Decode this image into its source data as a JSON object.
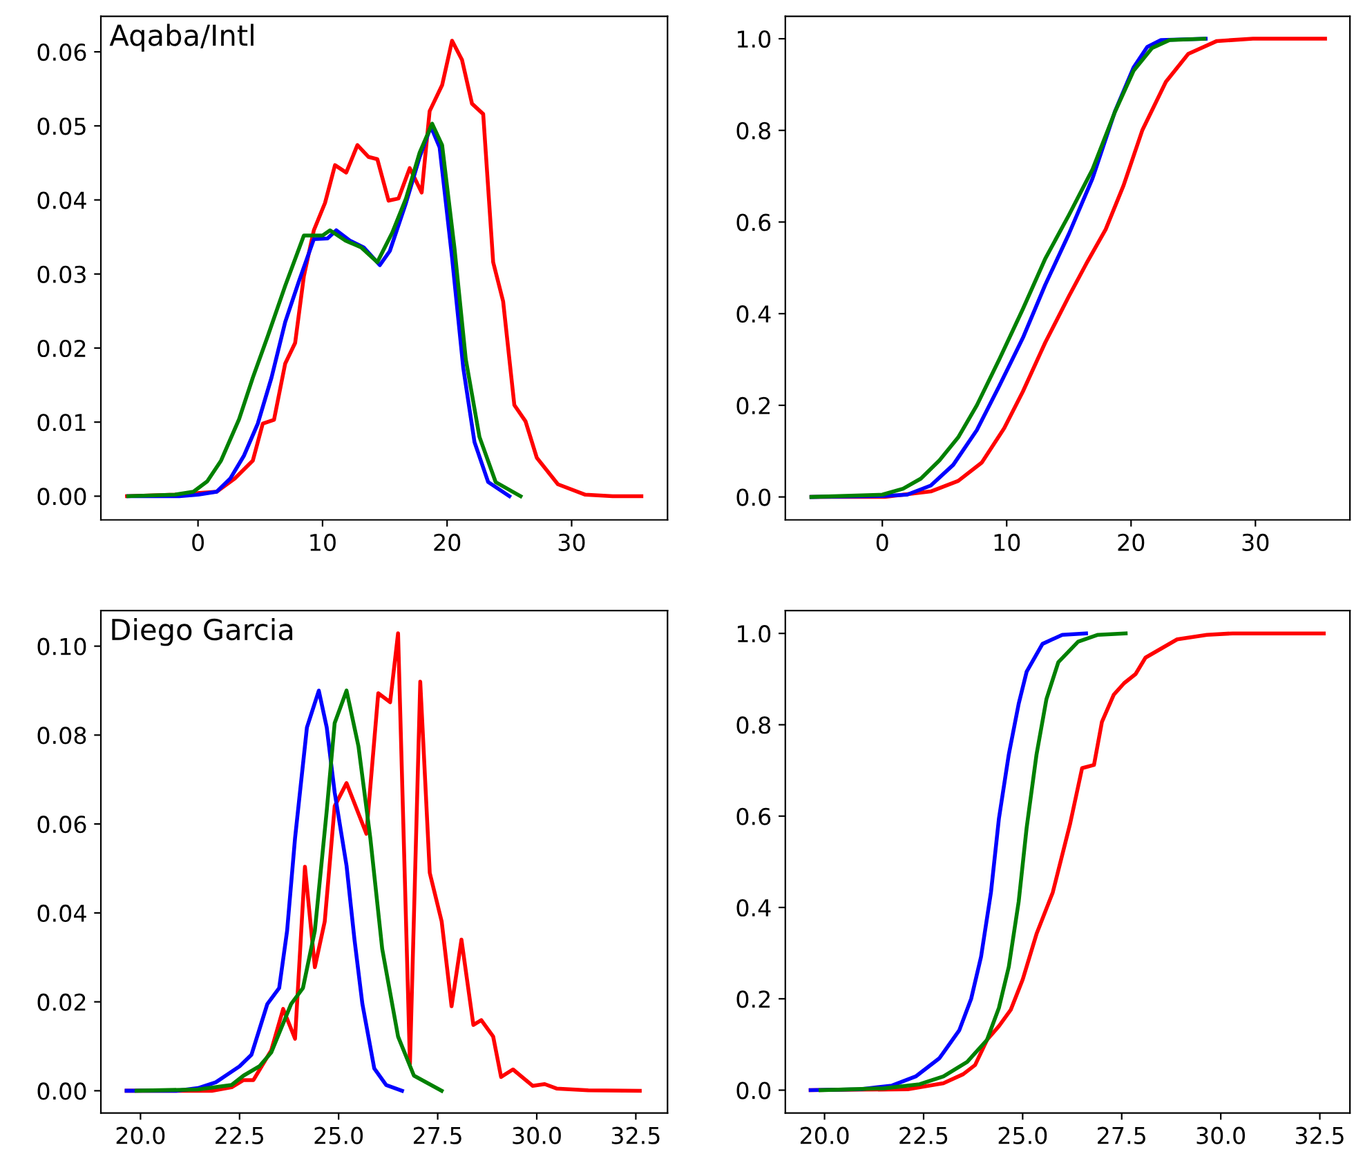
{
  "chart_data": [
    {
      "type": "line",
      "title": "Aqaba/Intl",
      "xlim": [
        -7.8,
        37.7
      ],
      "ylim": [
        -0.0032,
        0.0648
      ],
      "xticks": [
        0,
        10,
        20,
        30
      ],
      "yticks": [
        {
          "value": 0,
          "label": "0.00"
        },
        {
          "value": 0.01,
          "label": "0.01"
        },
        {
          "value": 0.02,
          "label": "0.02"
        },
        {
          "value": 0.03,
          "label": "0.03"
        },
        {
          "value": 0.04,
          "label": "0.04"
        },
        {
          "value": 0.05,
          "label": "0.05"
        },
        {
          "value": 0.06,
          "label": "0.06"
        }
      ],
      "grid": false,
      "marker": "none",
      "line_style": "solid",
      "series": [
        {
          "color": "#ff0000",
          "x": [
            -5.7,
            -1.85,
            1.5,
            2.96,
            4.4,
            5.2,
            6.1,
            7.0,
            7.8,
            8.5,
            9.3,
            10.2,
            11.0,
            11.9,
            12.8,
            13.7,
            14.4,
            15.3,
            16.1,
            17.0,
            17.96,
            18.6,
            19.6,
            20.4,
            21.2,
            22.0,
            22.9,
            23.7,
            24.5,
            25.4,
            26.3,
            27.2,
            28.9,
            31.1,
            33.3,
            35.6
          ],
          "values": [
            0,
            0.0002,
            0.0006,
            0.0024,
            0.0048,
            0.0098,
            0.0103,
            0.0179,
            0.0207,
            0.0297,
            0.0359,
            0.0396,
            0.0447,
            0.0437,
            0.0474,
            0.0458,
            0.0455,
            0.0399,
            0.0402,
            0.0443,
            0.041,
            0.052,
            0.0555,
            0.0615,
            0.0589,
            0.053,
            0.0516,
            0.0316,
            0.0263,
            0.0123,
            0.0101,
            0.0052,
            0.0016,
            0.0002,
            0,
            0
          ]
        },
        {
          "color": "#0000ff",
          "x": [
            -5.6,
            -1.5,
            0,
            1.5,
            2.6,
            3.7,
            4.8,
            5.9,
            7.0,
            8.1,
            9.3,
            10.4,
            11.1,
            12.2,
            13.3,
            14.6,
            15.4,
            16.7,
            17.8,
            18.7,
            19.4,
            20.4,
            21.3,
            22.2,
            23.3,
            25.0
          ],
          "values": [
            0,
            0,
            0.0002,
            0.0006,
            0.0024,
            0.0055,
            0.0098,
            0.016,
            0.0235,
            0.029,
            0.0347,
            0.0348,
            0.0359,
            0.0345,
            0.0336,
            0.0312,
            0.0331,
            0.0396,
            0.0458,
            0.0499,
            0.0471,
            0.0322,
            0.0173,
            0.0073,
            0.0019,
            0
          ]
        },
        {
          "color": "#008000",
          "x": [
            -5.6,
            -1.85,
            -0.37,
            0.74,
            1.85,
            3.3,
            4.4,
            5.6,
            7.0,
            8.5,
            10.0,
            10.6,
            11.85,
            13.1,
            14.4,
            15.6,
            16.7,
            17.8,
            18.8,
            19.6,
            20.6,
            21.5,
            22.6,
            23.9,
            25.9
          ],
          "values": [
            0,
            0.0002,
            0.0006,
            0.002,
            0.0048,
            0.0104,
            0.016,
            0.0216,
            0.0284,
            0.0352,
            0.0352,
            0.0359,
            0.0345,
            0.0336,
            0.0316,
            0.0356,
            0.0402,
            0.0464,
            0.0503,
            0.0474,
            0.0334,
            0.0185,
            0.008,
            0.0019,
            0
          ]
        }
      ]
    },
    {
      "type": "line",
      "xlim": [
        -7.8,
        37.6
      ],
      "ylim": [
        -0.05,
        1.049
      ],
      "xticks": [
        0,
        10,
        20,
        30
      ],
      "yticks": [
        {
          "value": 0,
          "label": "0.0"
        },
        {
          "value": 0.2,
          "label": "0.2"
        },
        {
          "value": 0.4,
          "label": "0.4"
        },
        {
          "value": 0.6,
          "label": "0.6"
        },
        {
          "value": 0.8,
          "label": "0.8"
        },
        {
          "value": 1,
          "label": "1.0"
        }
      ],
      "grid": false,
      "marker": "none",
      "line_style": "solid",
      "series": [
        {
          "color": "#ff0000",
          "x": [
            -5.7,
            0.2,
            3.9,
            6.1,
            8.0,
            9.8,
            11.3,
            13.1,
            15.0,
            16.5,
            17.96,
            19.4,
            20.9,
            22.8,
            24.6,
            26.9,
            29.8,
            35.6
          ],
          "values": [
            0,
            0,
            0.012,
            0.035,
            0.075,
            0.15,
            0.23,
            0.337,
            0.438,
            0.514,
            0.584,
            0.68,
            0.8,
            0.906,
            0.967,
            0.995,
            1.0,
            1.0
          ]
        },
        {
          "color": "#0000ff",
          "x": [
            -5.7,
            0,
            2.0,
            3.9,
            5.7,
            7.6,
            9.4,
            11.3,
            13.1,
            15.0,
            16.9,
            18.7,
            20.2,
            21.3,
            22.4,
            26.0
          ],
          "values": [
            0,
            0.002,
            0.005,
            0.025,
            0.07,
            0.146,
            0.242,
            0.347,
            0.463,
            0.574,
            0.695,
            0.841,
            0.937,
            0.982,
            0.997,
            1.0
          ]
        },
        {
          "color": "#008000",
          "x": [
            -5.7,
            0,
            1.67,
            3.1,
            4.6,
            6.1,
            7.6,
            9.4,
            11.3,
            13.1,
            15.0,
            16.9,
            18.7,
            20.2,
            21.7,
            23.1,
            25.9
          ],
          "values": [
            0,
            0.005,
            0.018,
            0.04,
            0.08,
            0.13,
            0.2,
            0.3,
            0.41,
            0.52,
            0.615,
            0.715,
            0.84,
            0.93,
            0.98,
            0.997,
            1.0
          ]
        }
      ]
    },
    {
      "type": "line",
      "title": "Diego Garcia",
      "xlim": [
        19.0,
        33.3
      ],
      "ylim": [
        -0.005,
        0.108
      ],
      "xticks": [
        {
          "value": 20,
          "label": "20.0"
        },
        {
          "value": 22.5,
          "label": "22.5"
        },
        {
          "value": 25,
          "label": "25.0"
        },
        {
          "value": 27.5,
          "label": "27.5"
        },
        {
          "value": 30,
          "label": "30.0"
        },
        {
          "value": 32.5,
          "label": "32.5"
        }
      ],
      "yticks": [
        {
          "value": 0,
          "label": "0.00"
        },
        {
          "value": 0.02,
          "label": "0.02"
        },
        {
          "value": 0.04,
          "label": "0.04"
        },
        {
          "value": 0.06,
          "label": "0.06"
        },
        {
          "value": 0.08,
          "label": "0.08"
        },
        {
          "value": 0.1,
          "label": "0.10"
        }
      ],
      "grid": false,
      "marker": "none",
      "line_style": "solid",
      "series": [
        {
          "color": "#ff0000",
          "x": [
            19.65,
            21.8,
            22.3,
            22.6,
            22.85,
            23.3,
            23.6,
            23.9,
            24.15,
            24.4,
            24.65,
            24.9,
            25.2,
            25.7,
            26.0,
            26.3,
            26.5,
            26.8,
            27.06,
            27.3,
            27.6,
            27.85,
            28.1,
            28.4,
            28.6,
            28.9,
            29.1,
            29.4,
            29.9,
            30.2,
            30.5,
            31.3,
            32.6
          ],
          "values": [
            0,
            0,
            0.0008,
            0.0024,
            0.0024,
            0.0091,
            0.0184,
            0.0117,
            0.0504,
            0.0278,
            0.0381,
            0.064,
            0.0692,
            0.0578,
            0.0894,
            0.0874,
            0.1029,
            0.006,
            0.092,
            0.049,
            0.0381,
            0.019,
            0.034,
            0.0148,
            0.0159,
            0.0122,
            0.0031,
            0.0048,
            0.0011,
            0.0015,
            0.0005,
            0.0001,
            0
          ]
        },
        {
          "color": "#0000ff",
          "x": [
            19.65,
            20.9,
            21.45,
            21.9,
            22.15,
            22.5,
            22.8,
            23.0,
            23.2,
            23.5,
            23.7,
            23.9,
            24.2,
            24.5,
            24.7,
            24.9,
            25.2,
            25.4,
            25.6,
            25.9,
            26.2,
            26.6
          ],
          "values": [
            0,
            0,
            0.0006,
            0.0019,
            0.0034,
            0.0055,
            0.0081,
            0.0138,
            0.0195,
            0.0231,
            0.036,
            0.0568,
            0.0817,
            0.09,
            0.0817,
            0.0671,
            0.0506,
            0.034,
            0.0195,
            0.005,
            0.0013,
            0
          ]
        },
        {
          "color": "#008000",
          "x": [
            19.9,
            21.45,
            22.3,
            22.6,
            23.0,
            23.3,
            23.8,
            24.1,
            24.4,
            24.7,
            24.9,
            25.2,
            25.5,
            25.8,
            26.1,
            26.5,
            26.9,
            27.6
          ],
          "values": [
            0,
            0.0003,
            0.0013,
            0.0034,
            0.0055,
            0.0086,
            0.0195,
            0.0231,
            0.036,
            0.063,
            0.0827,
            0.09,
            0.0775,
            0.0568,
            0.0319,
            0.0122,
            0.0034,
            0
          ]
        }
      ]
    },
    {
      "type": "line",
      "xlim": [
        19.01,
        33.26
      ],
      "ylim": [
        -0.05,
        1.05
      ],
      "xticks": [
        {
          "value": 20,
          "label": "20.0"
        },
        {
          "value": 22.5,
          "label": "22.5"
        },
        {
          "value": 25,
          "label": "25.0"
        },
        {
          "value": 27.5,
          "label": "27.5"
        },
        {
          "value": 30,
          "label": "30.0"
        },
        {
          "value": 32.5,
          "label": "32.5"
        }
      ],
      "yticks": [
        {
          "value": 0,
          "label": "0.0"
        },
        {
          "value": 0.2,
          "label": "0.2"
        },
        {
          "value": 0.4,
          "label": "0.4"
        },
        {
          "value": 0.6,
          "label": "0.6"
        },
        {
          "value": 0.8,
          "label": "0.8"
        },
        {
          "value": 1,
          "label": "1.0"
        }
      ],
      "grid": false,
      "marker": "none",
      "line_style": "solid",
      "series": [
        {
          "color": "#ff0000",
          "x": [
            19.65,
            22.1,
            23.0,
            23.5,
            23.8,
            24.1,
            24.4,
            24.7,
            25.0,
            25.35,
            25.76,
            26.2,
            26.5,
            26.8,
            27.0,
            27.3,
            27.56,
            27.85,
            28.1,
            28.5,
            28.9,
            29.65,
            30.3,
            32.6
          ],
          "values": [
            0,
            0.002,
            0.015,
            0.035,
            0.055,
            0.11,
            0.14,
            0.176,
            0.242,
            0.342,
            0.433,
            0.584,
            0.705,
            0.712,
            0.806,
            0.866,
            0.891,
            0.911,
            0.947,
            0.967,
            0.987,
            0.997,
            1.0,
            1.0
          ]
        },
        {
          "color": "#0000ff",
          "x": [
            19.65,
            20.9,
            21.7,
            22.3,
            22.9,
            23.4,
            23.7,
            23.95,
            24.2,
            24.4,
            24.65,
            24.9,
            25.1,
            25.5,
            26.0,
            26.6
          ],
          "values": [
            0,
            0.002,
            0.01,
            0.03,
            0.07,
            0.131,
            0.2,
            0.292,
            0.433,
            0.594,
            0.735,
            0.846,
            0.916,
            0.977,
            0.997,
            1.0
          ]
        },
        {
          "color": "#008000",
          "x": [
            19.9,
            21.5,
            22.4,
            23.0,
            23.6,
            24.1,
            24.4,
            24.65,
            24.9,
            25.1,
            25.35,
            25.6,
            25.9,
            26.4,
            26.9,
            27.6
          ],
          "values": [
            0,
            0.004,
            0.013,
            0.03,
            0.062,
            0.11,
            0.18,
            0.27,
            0.413,
            0.574,
            0.735,
            0.856,
            0.937,
            0.982,
            0.997,
            1.0
          ]
        }
      ]
    }
  ]
}
